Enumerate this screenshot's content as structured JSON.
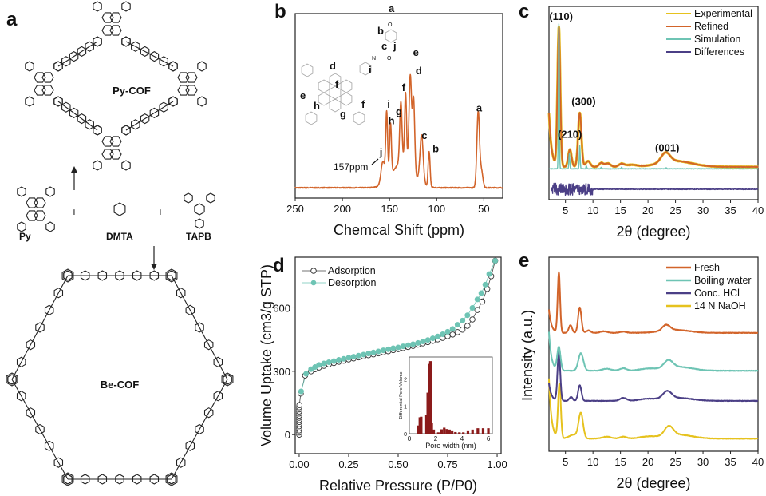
{
  "panel_labels": {
    "a": "a",
    "b": "b",
    "c": "c",
    "d": "d",
    "e": "e"
  },
  "scheme": {
    "top_product": "Py-COF",
    "bottom_product": "Be-COF",
    "monomers": [
      "Py",
      "DMTA",
      "TAPB"
    ],
    "plus": "+"
  },
  "colors": {
    "orange": "#d2642a",
    "teal": "#6ec4b4",
    "navy": "#4b3f86",
    "yellow": "#e6c21e",
    "darkred": "#8b1a1a"
  },
  "chart_data": [
    {
      "id": "b",
      "type": "line",
      "xlabel": "Chemcal Shift (ppm)",
      "xlim": [
        250,
        30
      ],
      "xticks": [
        250,
        200,
        150,
        100,
        50
      ],
      "ylim": [
        0,
        100
      ],
      "y_unit": "a.u.",
      "baseline": 5.6,
      "color": "#d2642a",
      "peaks": [
        {
          "label": "a",
          "ppm": 56,
          "height": 41,
          "width": 1.4
        },
        {
          "label": "",
          "ppm": 52.5,
          "height": 9,
          "width": 1.5
        },
        {
          "label": "b",
          "ppm": 108,
          "height": 19,
          "width": 1.0
        },
        {
          "label": "c",
          "ppm": 116,
          "height": 26,
          "width": 1.7
        },
        {
          "label": "d",
          "ppm": 124.5,
          "height": 40,
          "width": 1.2
        },
        {
          "label": "e",
          "ppm": 128,
          "height": 50,
          "width": 1.3
        },
        {
          "label": "f",
          "ppm": 133,
          "height": 38,
          "width": 1.0
        },
        {
          "label": "g",
          "ppm": 138,
          "height": 33,
          "width": 1.2
        },
        {
          "label": "h",
          "ppm": 149,
          "height": 28,
          "width": 1.0
        },
        {
          "label": "i",
          "ppm": 153,
          "height": 36,
          "width": 1.0
        },
        {
          "label": "j",
          "ppm": 157,
          "height": 12,
          "width": 2.0
        },
        {
          "label": "",
          "ppm": 136,
          "height": 14,
          "width": 11
        }
      ],
      "peak_labels": [
        {
          "text": "a",
          "ppm": 55,
          "y": 47
        },
        {
          "text": "b",
          "ppm": 101,
          "y": 25
        },
        {
          "text": "c",
          "ppm": 113,
          "y": 32
        },
        {
          "text": "d",
          "ppm": 119,
          "y": 67
        },
        {
          "text": "e",
          "ppm": 122,
          "y": 77
        },
        {
          "text": "f",
          "ppm": 135,
          "y": 58
        },
        {
          "text": "g",
          "ppm": 140,
          "y": 45
        },
        {
          "text": "h",
          "ppm": 148,
          "y": 40
        },
        {
          "text": "i",
          "ppm": 151,
          "y": 49
        },
        {
          "text": "j",
          "ppm": 159,
          "y": 23
        }
      ],
      "annotation": {
        "text": "157ppm",
        "ppm": 157
      },
      "structure_labels": [
        "a",
        "b",
        "c",
        "j",
        "d",
        "i",
        "f",
        "e",
        "h",
        "g",
        "f"
      ],
      "structure_atoms": [
        "O",
        "O",
        "N"
      ]
    },
    {
      "id": "c",
      "type": "line",
      "xlabel": "2θ (degree)",
      "xlim": [
        2,
        40
      ],
      "xticks": [
        5,
        10,
        15,
        20,
        25,
        30,
        35,
        40
      ],
      "ylim": [
        0,
        100
      ],
      "legend": {
        "placement": "top-right",
        "entries": [
          {
            "name": "Experimental",
            "color": "#e6c21e"
          },
          {
            "name": "Refined",
            "color": "#d2642a"
          },
          {
            "name": "Simulation",
            "color": "#6ec4b4"
          },
          {
            "name": "Differences",
            "color": "#4b3f86"
          }
        ]
      },
      "series": [
        {
          "name": "Experimental",
          "color": "#e6c21e",
          "baseline": 17,
          "low_angle": 28,
          "peaks": [
            [
              3.8,
              72,
              0.25
            ],
            [
              5.8,
              9,
              0.3
            ],
            [
              7.6,
              28,
              0.3
            ],
            [
              9.1,
              3,
              0.4
            ],
            [
              11.5,
              2,
              0.4
            ],
            [
              12.7,
              1.8,
              0.5
            ],
            [
              15.2,
              1.5,
              0.5
            ],
            [
              17,
              1,
              1
            ],
            [
              23.2,
              5,
              0.8
            ],
            [
              25,
              3,
              3
            ]
          ]
        },
        {
          "name": "Refined",
          "color": "#d2642a",
          "baseline": 17,
          "low_angle": 28,
          "peaks": [
            [
              3.8,
              72,
              0.25
            ],
            [
              5.8,
              9,
              0.3
            ],
            [
              7.6,
              28,
              0.3
            ],
            [
              9.1,
              3,
              0.4
            ],
            [
              11.5,
              2,
              0.4
            ],
            [
              12.7,
              1.8,
              0.5
            ],
            [
              15.2,
              1.5,
              0.5
            ],
            [
              17,
              1,
              1
            ],
            [
              23.2,
              5,
              0.8
            ],
            [
              25,
              3,
              3
            ]
          ]
        },
        {
          "name": "Simulation",
          "color": "#6ec4b4",
          "baseline": 16,
          "low_angle": 0,
          "peaks": [
            [
              3.8,
              75,
              0.08
            ],
            [
              5.7,
              8,
              0.08
            ],
            [
              7.6,
              12,
              0.08
            ],
            [
              8.8,
              1.5,
              0.08
            ],
            [
              11.5,
              0.8,
              0.08
            ],
            [
              15.2,
              0.8,
              0.08
            ],
            [
              23.3,
              0.6,
              0.1
            ]
          ]
        },
        {
          "name": "Differences",
          "color": "#4b3f86",
          "baseline": 5.4,
          "noise": 3,
          "noise_until": 10,
          "peaks": []
        }
      ],
      "peak_labels": [
        {
          "text": "(110)",
          "x": 4.2,
          "y": 93
        },
        {
          "text": "(300)",
          "x": 8.3,
          "y": 49
        },
        {
          "text": "(210)",
          "x": 5.8,
          "y": 32
        },
        {
          "text": "(001)",
          "x": 23.5,
          "y": 25
        }
      ]
    },
    {
      "id": "d",
      "type": "scatter",
      "xlabel": "Relative Pressure (P/P0)",
      "ylabel": "Volume Uptake (cm3/g STP)",
      "xlim": [
        -0.02,
        1.02
      ],
      "ylim": [
        -90,
        840
      ],
      "xticks": [
        "0.00",
        "0.25",
        "0.50",
        "0.75",
        "1.00"
      ],
      "yticks": [
        0,
        300,
        600
      ],
      "legend": {
        "placement": "top-left",
        "entries": [
          {
            "name": "Adsorption",
            "marker": "open-circle",
            "color": "#333333"
          },
          {
            "name": "Desorption",
            "marker": "filled-circle",
            "color": "#6ec4b4"
          }
        ]
      },
      "series": [
        {
          "name": "Adsorption",
          "x": [
            0,
            0,
            0,
            0,
            0,
            0,
            0,
            0,
            0,
            0,
            0,
            0,
            0,
            0,
            0.001,
            0.008,
            0.03,
            0.06,
            0.08,
            0.1,
            0.125,
            0.15,
            0.175,
            0.2,
            0.225,
            0.25,
            0.275,
            0.3,
            0.325,
            0.35,
            0.375,
            0.4,
            0.425,
            0.45,
            0.475,
            0.5,
            0.525,
            0.55,
            0.575,
            0.6,
            0.625,
            0.65,
            0.675,
            0.7,
            0.725,
            0.75,
            0.775,
            0.8,
            0.825,
            0.85,
            0.875,
            0.9,
            0.925,
            0.95,
            0.97,
            0.99
          ],
          "y": [
            0,
            10,
            20,
            30,
            40,
            50,
            60,
            70,
            80,
            90,
            100,
            110,
            120,
            130,
            140,
            195,
            280,
            300,
            310,
            318,
            326,
            333,
            339,
            345,
            350,
            356,
            361,
            366,
            371,
            376,
            380,
            385,
            390,
            395,
            400,
            405,
            410,
            415,
            420,
            426,
            432,
            438,
            444,
            451,
            458,
            466,
            474,
            485,
            497,
            515,
            545,
            590,
            630,
            690,
            750,
            823
          ]
        },
        {
          "name": "Desorption",
          "x": [
            0.01,
            0.035,
            0.06,
            0.08,
            0.1,
            0.125,
            0.15,
            0.175,
            0.2,
            0.225,
            0.25,
            0.275,
            0.3,
            0.325,
            0.35,
            0.375,
            0.4,
            0.425,
            0.45,
            0.475,
            0.5,
            0.525,
            0.55,
            0.575,
            0.6,
            0.625,
            0.65,
            0.675,
            0.7,
            0.725,
            0.75,
            0.775,
            0.8,
            0.825,
            0.85,
            0.875,
            0.9,
            0.92,
            0.94,
            0.96,
            0.99
          ],
          "y": [
            205,
            288,
            310,
            320,
            330,
            337,
            343,
            348,
            354,
            359,
            364,
            369,
            374,
            379,
            384,
            389,
            394,
            399,
            404,
            409,
            413,
            418,
            423,
            428,
            434,
            441,
            448,
            456,
            465,
            475,
            487,
            500,
            520,
            540,
            565,
            600,
            640,
            670,
            710,
            760,
            823
          ]
        }
      ],
      "inset": {
        "type": "bar",
        "xlabel": "Pore width (nm)",
        "ylabel": "Differential Pore Volume",
        "xlim": [
          0,
          6.3
        ],
        "ylim": [
          0,
          2.8
        ],
        "xticks": [
          0,
          2,
          4,
          6
        ],
        "yticks": [
          0,
          1,
          2
        ],
        "color": "#8b1a1a",
        "x": [
          0.65,
          0.8,
          0.9,
          1.3,
          1.4,
          1.5,
          1.6,
          1.7,
          1.85,
          2.2,
          2.45,
          2.65,
          2.85,
          3.05,
          3.25,
          3.5,
          3.8,
          4.1,
          4.45,
          4.8,
          5.2,
          5.6,
          6.0
        ],
        "values": [
          0.3,
          0.6,
          0.62,
          0.7,
          1.5,
          2.55,
          2.65,
          0.4,
          0.15,
          0.05,
          0.16,
          0.22,
          0.17,
          0.15,
          0.12,
          0.06,
          0.05,
          0.05,
          0.12,
          0.15,
          0.2,
          0.2,
          0.2
        ]
      }
    },
    {
      "id": "e",
      "type": "line",
      "xlabel": "2θ (degree)",
      "ylabel": "Intensity (a.u.)",
      "xlim": [
        2,
        40
      ],
      "xticks": [
        5,
        10,
        15,
        20,
        25,
        30,
        35,
        40
      ],
      "ylim": [
        0,
        100
      ],
      "legend": {
        "placement": "top-right",
        "entries": [
          {
            "name": "Fresh",
            "color": "#d2642a"
          },
          {
            "name": "Boiling water",
            "color": "#6ec4b4"
          },
          {
            "name": "Conc. HCl",
            "color": "#4b3f86"
          },
          {
            "name": "14 N NaOH",
            "color": "#e6c21e"
          }
        ]
      },
      "series": [
        {
          "name": "Fresh",
          "color": "#d2642a",
          "baseline": 61,
          "low_angle": 12,
          "peaks": [
            [
              3.8,
              31,
              0.22
            ],
            [
              5.9,
              4,
              0.3
            ],
            [
              7.6,
              13,
              0.3
            ],
            [
              9.2,
              1.2,
              0.4
            ],
            [
              12,
              0.8,
              0.6
            ],
            [
              15.5,
              0.6,
              0.6
            ],
            [
              23.3,
              3,
              0.7
            ],
            [
              25,
              1.5,
              2.5
            ]
          ]
        },
        {
          "name": "Boiling water",
          "color": "#6ec4b4",
          "baseline": 41.5,
          "low_angle": 20,
          "peaks": [
            [
              3.8,
              12,
              0.3
            ],
            [
              7.8,
              9,
              0.45
            ],
            [
              12.5,
              1,
              0.8
            ],
            [
              15.5,
              1.3,
              0.6
            ],
            [
              20,
              1,
              1.5
            ],
            [
              23.7,
              4,
              0.8
            ],
            [
              25.5,
              2,
              2.5
            ]
          ]
        },
        {
          "name": "Conc. HCl",
          "color": "#4b3f86",
          "baseline": 26,
          "low_angle": 9,
          "peaks": [
            [
              3.8,
              25,
              0.25
            ],
            [
              6,
              2,
              0.3
            ],
            [
              7.6,
              8,
              0.3
            ],
            [
              15.5,
              1.5,
              0.6
            ],
            [
              20,
              1,
              1.5
            ],
            [
              23.5,
              4,
              0.8
            ],
            [
              25.5,
              1.5,
              2.5
            ]
          ]
        },
        {
          "name": "14 N NaOH",
          "color": "#e6c21e",
          "baseline": 6.5,
          "low_angle": 31,
          "peaks": [
            [
              3.9,
              28,
              0.25
            ],
            [
              6.5,
              2,
              0.8
            ],
            [
              7.8,
              13,
              0.4
            ],
            [
              12.5,
              1,
              0.8
            ],
            [
              15.5,
              1,
              0.6
            ],
            [
              20,
              1,
              1.5
            ],
            [
              23.8,
              5,
              0.8
            ],
            [
              25.5,
              2,
              2.5
            ]
          ]
        }
      ]
    }
  ]
}
